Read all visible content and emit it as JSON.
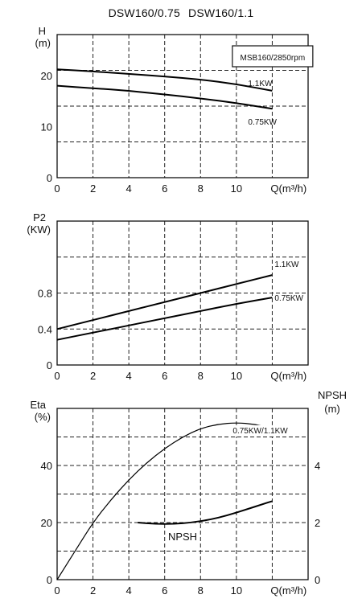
{
  "header": {
    "model_a": "DSW160/0.75",
    "model_b": "DSW160/1.1"
  },
  "chart_data": [
    {
      "type": "line",
      "ylabel": "H",
      "yunit": "(m)",
      "xlabel": "Q(m³/h)",
      "xlim": [
        0,
        12
      ],
      "ylim": [
        0,
        24
      ],
      "xticks": [
        "0",
        "2",
        "4",
        "6",
        "8",
        "10"
      ],
      "yticks": [
        "0",
        "10",
        "20"
      ],
      "box_label": "MSB160/2850rpm",
      "series": [
        {
          "name": "1.1KW",
          "x": [
            0,
            2,
            4,
            6,
            8,
            10,
            12
          ],
          "y": [
            21.2,
            20.8,
            20.3,
            19.8,
            19.2,
            18.3,
            17.0
          ]
        },
        {
          "name": "0.75KW",
          "x": [
            0,
            2,
            4,
            6,
            8,
            10,
            12
          ],
          "y": [
            18.0,
            17.5,
            17.0,
            16.3,
            15.5,
            14.6,
            13.5
          ]
        }
      ]
    },
    {
      "type": "line",
      "ylabel": "P2",
      "yunit": "(KW)",
      "xlabel": "Q(m³/h)",
      "xlim": [
        0,
        12
      ],
      "ylim": [
        0,
        1.2
      ],
      "xticks": [
        "0",
        "2",
        "4",
        "6",
        "8",
        "10"
      ],
      "yticks": [
        "0",
        "0.4",
        "0.8"
      ],
      "series": [
        {
          "name": "1.1KW",
          "x": [
            0,
            2,
            4,
            6,
            8,
            10,
            12
          ],
          "y": [
            0.4,
            0.5,
            0.6,
            0.7,
            0.8,
            0.9,
            1.0
          ]
        },
        {
          "name": "0.75KW",
          "x": [
            0,
            2,
            4,
            6,
            8,
            10,
            12
          ],
          "y": [
            0.28,
            0.36,
            0.44,
            0.52,
            0.6,
            0.68,
            0.75
          ]
        }
      ]
    },
    {
      "type": "line",
      "ylabel": "Eta",
      "yunit": "(%)",
      "y2label": "NPSH",
      "y2unit": "(m)",
      "xlabel": "Q(m³/h)",
      "xlim": [
        0,
        12
      ],
      "ylim": [
        0,
        60
      ],
      "y2lim": [
        0,
        6
      ],
      "xticks": [
        "0",
        "2",
        "4",
        "6",
        "8",
        "10"
      ],
      "yticks": [
        "0",
        "20",
        "40"
      ],
      "y2ticks": [
        "0",
        "2",
        "4"
      ],
      "series": [
        {
          "name": "0.75KW/1.1KW",
          "axis": "left",
          "x": [
            0,
            1,
            2,
            3,
            4,
            5,
            6,
            7,
            8,
            9,
            10,
            11,
            12
          ],
          "y": [
            0,
            10,
            20,
            28,
            35,
            41,
            46,
            50,
            53,
            54.5,
            55,
            54.5,
            53
          ]
        },
        {
          "name": "NPSH",
          "axis": "right",
          "x": [
            4.5,
            5.5,
            6.5,
            7.5,
            8.5,
            9.5,
            10.5,
            11.5,
            12
          ],
          "y": [
            2.0,
            1.95,
            1.95,
            2.0,
            2.1,
            2.25,
            2.45,
            2.65,
            2.75
          ]
        }
      ]
    }
  ]
}
